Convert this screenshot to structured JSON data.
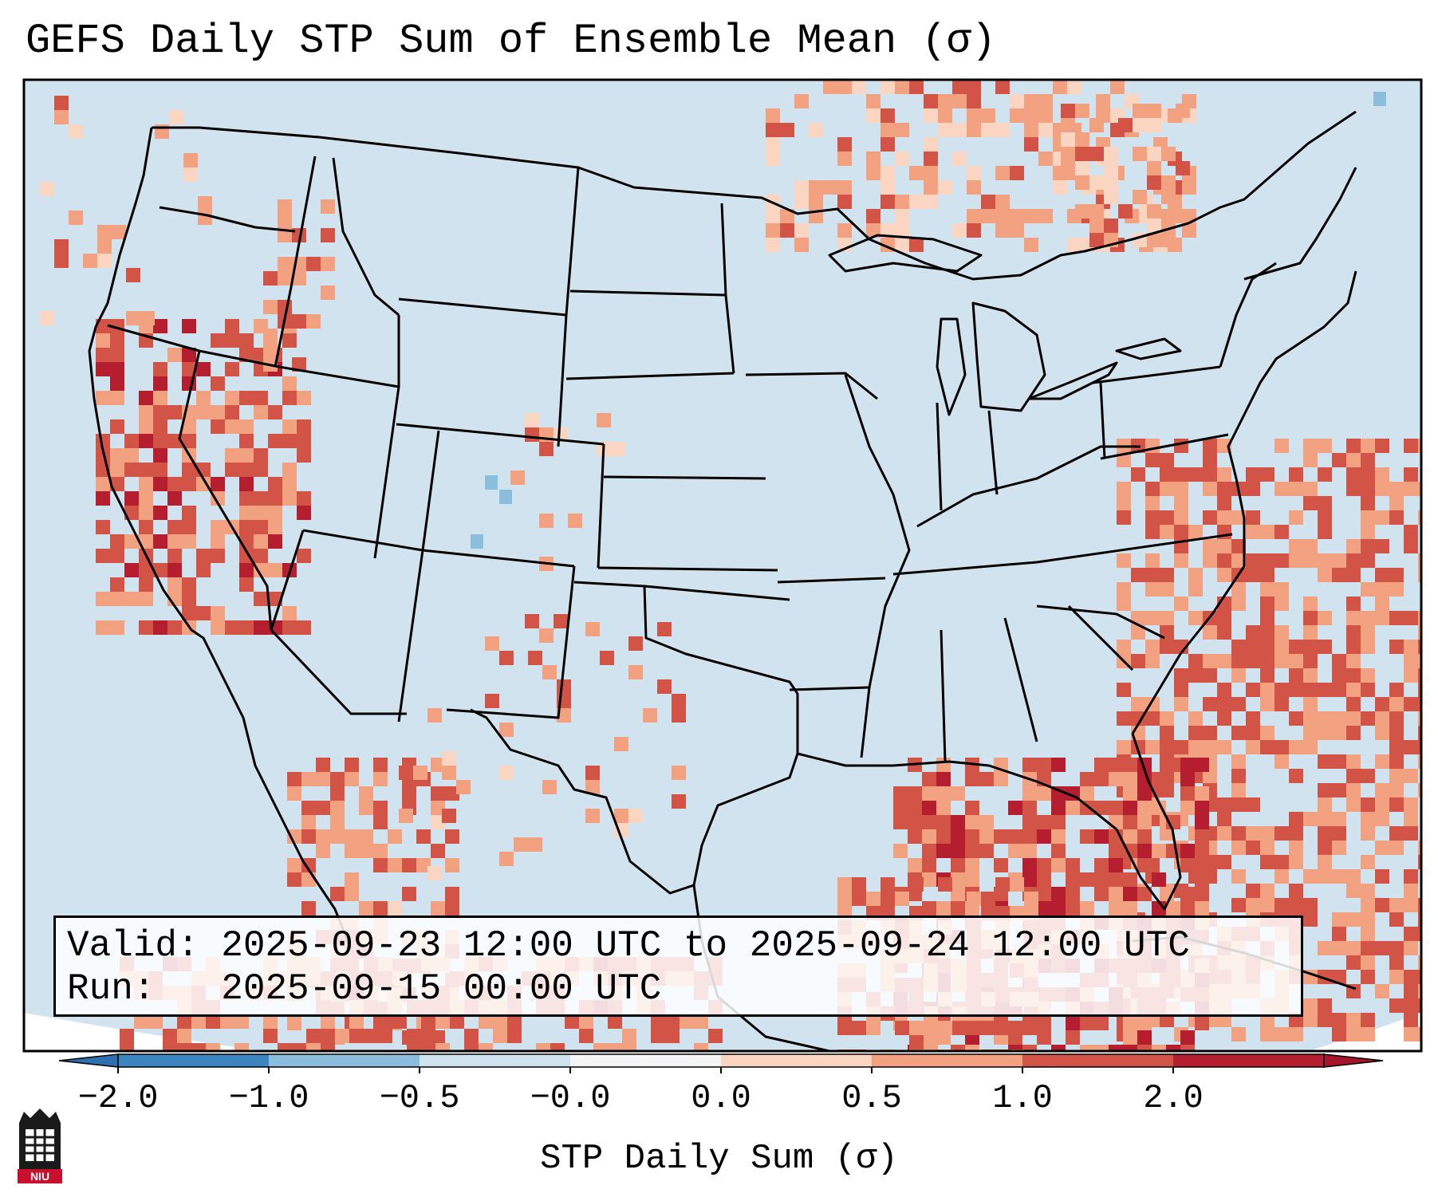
{
  "title": "GEFS Daily STP Sum of Ensemble Mean (σ)",
  "valid_line": "Valid: 2025-09-23 12:00 UTC to 2025-09-24 12:00 UTC",
  "run_line": "Run:   2025-09-15 00:00 UTC",
  "colorbar": {
    "label": "STP Daily Sum (σ)",
    "ticks": [
      "−2.0",
      "−1.0",
      "−0.5",
      "−0.0",
      "0.0",
      "0.5",
      "1.0",
      "2.0"
    ],
    "colors": [
      "#3d85c1",
      "#8bbedc",
      "#cfe3ef",
      "#f5f5f5",
      "#fad5c2",
      "#f2a181",
      "#d15447",
      "#b51e2e"
    ],
    "extend_low_color": "#2e6fb0",
    "extend_high_color": "#a51428"
  },
  "logo_text": "NIU",
  "colors": {
    "background_field": "#d0e3ef",
    "outside_domain": "#ffffff",
    "state_lines": "#000000"
  }
}
